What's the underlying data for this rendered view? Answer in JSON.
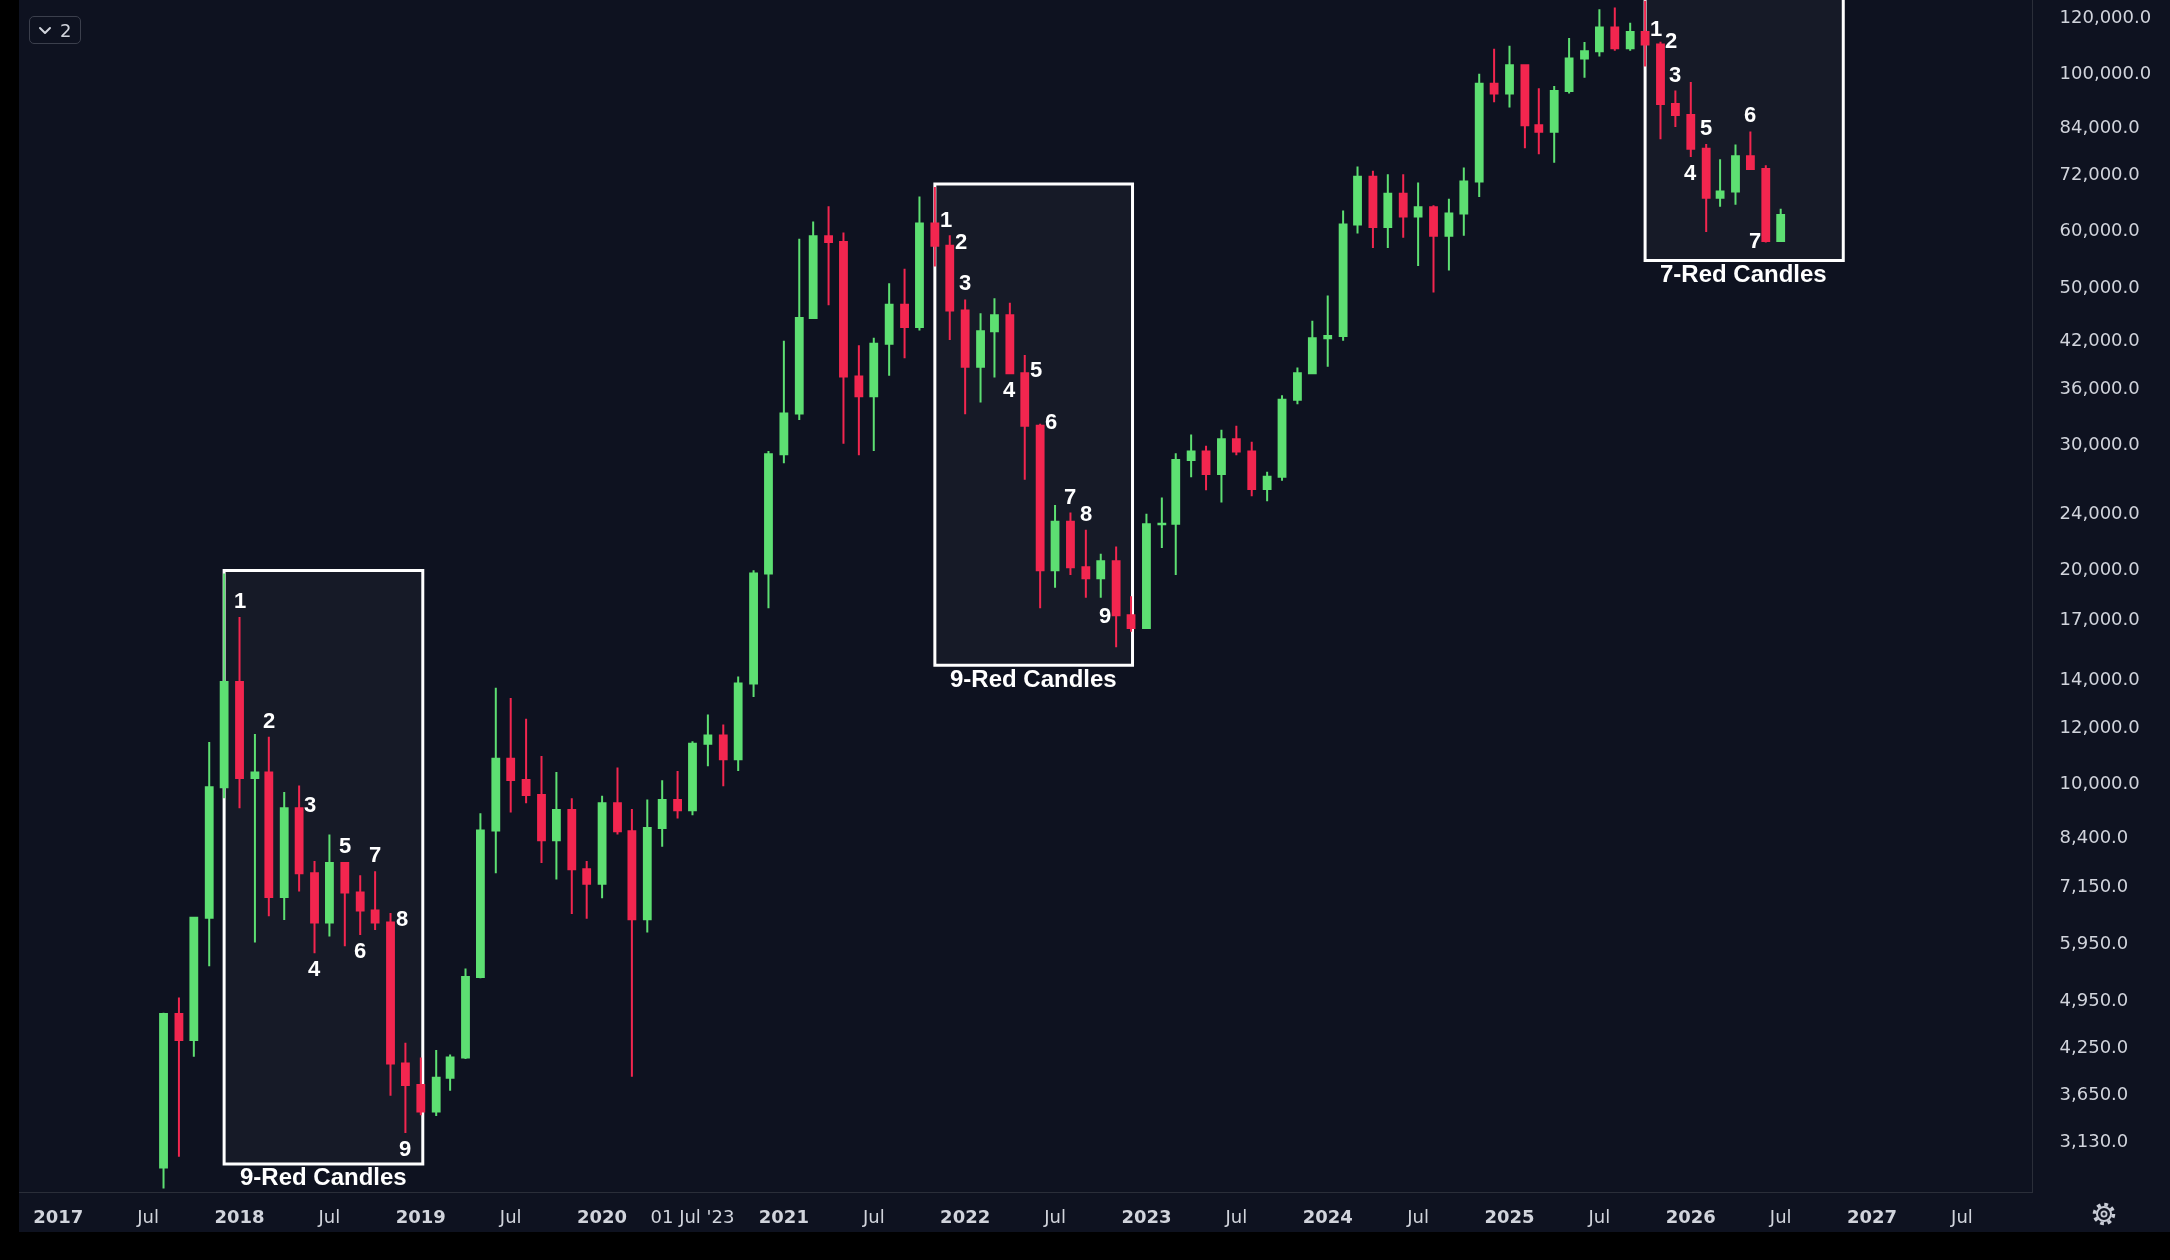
{
  "chart_data": {
    "type": "candlestick",
    "x": [
      "2017-08",
      "2017-09",
      "2017-10",
      "2017-11",
      "2017-12",
      "2018-01",
      "2018-02",
      "2018-03",
      "2018-04",
      "2018-05",
      "2018-06",
      "2018-07",
      "2018-08",
      "2018-09",
      "2018-10",
      "2018-11",
      "2018-12",
      "2019-01",
      "2019-02",
      "2019-03",
      "2019-04",
      "2019-05",
      "2019-06",
      "2019-07",
      "2019-08",
      "2019-09",
      "2019-10",
      "2019-11",
      "2019-12",
      "2020-01",
      "2020-02",
      "2020-03",
      "2020-04",
      "2020-05",
      "2020-06",
      "2020-07",
      "2020-08",
      "2020-09",
      "2020-10",
      "2020-11",
      "2020-12",
      "2021-01",
      "2021-02",
      "2021-03",
      "2021-04",
      "2021-05",
      "2021-06",
      "2021-07",
      "2021-08",
      "2021-09",
      "2021-10",
      "2021-11",
      "2021-12",
      "2022-01",
      "2022-02",
      "2022-03",
      "2022-04",
      "2022-05",
      "2022-06",
      "2022-07",
      "2022-08",
      "2022-09",
      "2022-10",
      "2022-11",
      "2022-12",
      "2023-01",
      "2023-02",
      "2023-03",
      "2023-04",
      "2023-05",
      "2023-06",
      "2023-07",
      "2023-08",
      "2023-09",
      "2023-10",
      "2023-11",
      "2023-12",
      "2024-01",
      "2024-02",
      "2024-03",
      "2024-04",
      "2024-05",
      "2024-06",
      "2024-07",
      "2024-08",
      "2024-09",
      "2024-10",
      "2024-11",
      "2024-12",
      "2025-01",
      "2025-02",
      "2025-03",
      "2025-04",
      "2025-05",
      "2025-06",
      "2025-07",
      "2025-08",
      "2025-09",
      "2025-10",
      "2025-11",
      "2025-12",
      "2026-01",
      "2026-02",
      "2026-03",
      "2026-04",
      "2026-05",
      "2026-06",
      "2026-07"
    ],
    "ohlc": [
      [
        2870,
        4740,
        2680,
        4720
      ],
      [
        4720,
        4980,
        2970,
        4340
      ],
      [
        4340,
        6470,
        4110,
        6450
      ],
      [
        6450,
        11400,
        5510,
        9850
      ],
      [
        9850,
        19700,
        9500,
        13850
      ],
      [
        13850,
        17100,
        9200,
        10150
      ],
      [
        10150,
        11700,
        5950,
        10330
      ],
      [
        10330,
        11600,
        6480,
        6900
      ],
      [
        6900,
        9700,
        6400,
        9200
      ],
      [
        9200,
        9900,
        7020,
        7450
      ],
      [
        7450,
        7750,
        5750,
        6350
      ],
      [
        6350,
        8450,
        6070,
        7700
      ],
      [
        7700,
        7720,
        5880,
        7000
      ],
      [
        7000,
        7400,
        6100,
        6600
      ],
      [
        6600,
        7500,
        6200,
        6350
      ],
      [
        6350,
        6550,
        3620,
        4020
      ],
      [
        4020,
        4300,
        3210,
        3750
      ],
      [
        3750,
        4100,
        3400,
        3440
      ],
      [
        3440,
        4200,
        3390,
        3840
      ],
      [
        3840,
        4140,
        3680,
        4100
      ],
      [
        4100,
        5470,
        4080,
        5320
      ],
      [
        5320,
        9050,
        5300,
        8560
      ],
      [
        8560,
        13600,
        7450,
        10800
      ],
      [
        10800,
        13150,
        9070,
        10080
      ],
      [
        10080,
        12300,
        9350,
        9600
      ],
      [
        9600,
        10900,
        7700,
        8290
      ],
      [
        8290,
        10350,
        7300,
        9150
      ],
      [
        9150,
        9500,
        6530,
        7550
      ],
      [
        7550,
        7750,
        6430,
        7200
      ],
      [
        7200,
        9580,
        6870,
        9350
      ],
      [
        9350,
        10500,
        8450,
        8540
      ],
      [
        8540,
        9180,
        3850,
        6420
      ],
      [
        6420,
        9460,
        6150,
        8630
      ],
      [
        8630,
        10070,
        8120,
        9450
      ],
      [
        9450,
        10380,
        8900,
        9140
      ],
      [
        9140,
        11430,
        8990,
        11340
      ],
      [
        11340,
        12470,
        10540,
        11650
      ],
      [
        11650,
        12070,
        9880,
        10780
      ],
      [
        10780,
        14100,
        10380,
        13790
      ],
      [
        13790,
        19900,
        13200,
        19700
      ],
      [
        19700,
        29300,
        17600,
        28990
      ],
      [
        28990,
        41900,
        28150,
        33100
      ],
      [
        33100,
        58300,
        32400,
        45100
      ],
      [
        45100,
        61700,
        45000,
        58800
      ],
      [
        58800,
        64800,
        47000,
        57700
      ],
      [
        57700,
        59500,
        30000,
        37300
      ],
      [
        37300,
        41300,
        28900,
        35000
      ],
      [
        35000,
        42300,
        29300,
        41500
      ],
      [
        41500,
        50500,
        37400,
        47100
      ],
      [
        47100,
        52900,
        39600,
        43800
      ],
      [
        43800,
        66900,
        43300,
        61300
      ],
      [
        61300,
        69000,
        53300,
        57000
      ],
      [
        57000,
        59000,
        42000,
        46200
      ],
      [
        46200,
        47900,
        33000,
        38500
      ],
      [
        38500,
        45800,
        34300,
        43200
      ],
      [
        43200,
        48100,
        37200,
        45500
      ],
      [
        45500,
        47400,
        37600,
        37700
      ],
      [
        37700,
        40000,
        26700,
        31800
      ],
      [
        31800,
        32000,
        17600,
        19900
      ],
      [
        19900,
        24600,
        18800,
        23300
      ],
      [
        23300,
        24000,
        19600,
        20100
      ],
      [
        20100,
        22700,
        18200,
        19400
      ],
      [
        19400,
        21000,
        18200,
        20500
      ],
      [
        20500,
        21500,
        15500,
        17200
      ],
      [
        17200,
        18300,
        16300,
        16500
      ],
      [
        16500,
        23900,
        16500,
        23100
      ],
      [
        23100,
        25200,
        21400,
        23150
      ],
      [
        23150,
        29100,
        19600,
        28450
      ],
      [
        28450,
        30900,
        26900,
        29250
      ],
      [
        29250,
        29800,
        25800,
        27200
      ],
      [
        27200,
        31400,
        24800,
        30450
      ],
      [
        30450,
        31800,
        28900,
        29250
      ],
      [
        29250,
        30200,
        25300,
        25900
      ],
      [
        25900,
        27400,
        24900,
        26950
      ],
      [
        26950,
        35100,
        26600,
        34600
      ],
      [
        34600,
        38400,
        34100,
        37700
      ],
      [
        37700,
        44700,
        37600,
        42250
      ],
      [
        42250,
        48500,
        38500,
        42550
      ],
      [
        42550,
        63900,
        41900,
        61100
      ],
      [
        61100,
        73700,
        59300,
        71300
      ],
      [
        71300,
        72700,
        56600,
        60600
      ],
      [
        60600,
        71900,
        56600,
        67500
      ],
      [
        67500,
        71900,
        58500,
        62700
      ],
      [
        62700,
        70000,
        53400,
        64600
      ],
      [
        64600,
        65000,
        49000,
        58900
      ],
      [
        58900,
        66400,
        52600,
        63300
      ],
      [
        63300,
        73500,
        58900,
        70200
      ],
      [
        70200,
        99600,
        66800,
        96400
      ],
      [
        96400,
        108000,
        90800,
        93400
      ],
      [
        93400,
        109100,
        89300,
        102400
      ],
      [
        102400,
        102700,
        78200,
        84300
      ],
      [
        84300,
        95000,
        76700,
        82500
      ],
      [
        82500,
        95700,
        74600,
        94200
      ],
      [
        94200,
        111800,
        93400,
        104600
      ],
      [
        104600,
        110400,
        98300,
        107100
      ],
      [
        107100,
        122800,
        105300,
        115700
      ],
      [
        115700,
        123500,
        107300,
        108200
      ],
      [
        108200,
        117500,
        107300,
        114000
      ],
      [
        114000,
        126200,
        102000,
        109500
      ],
      [
        109500,
        110500,
        80500,
        90300
      ],
      [
        90300,
        94300,
        83800,
        87100
      ],
      [
        87100,
        97000,
        76000,
        78100
      ],
      [
        78100,
        79300,
        59600,
        66600
      ],
      [
        66600,
        75500,
        64700,
        68000
      ],
      [
        68000,
        79200,
        65100,
        76200
      ],
      [
        76200,
        82600,
        72900,
        73100
      ],
      [
        73100,
        74000,
        57600,
        57900
      ],
      [
        57900,
        64300,
        57700,
        63000
      ]
    ],
    "colors": [
      "#5ddf72",
      "#f2264f",
      "#5ddf72",
      "#5ddf72",
      "#5ddf72",
      "#f2264f",
      "#5ddf72",
      "#f2264f",
      "#5ddf72",
      "#f2264f",
      "#f2264f",
      "#5ddf72",
      "#f2264f",
      "#f2264f",
      "#f2264f",
      "#f2264f",
      "#f2264f",
      "#f2264f",
      "#5ddf72",
      "#5ddf72",
      "#5ddf72",
      "#5ddf72",
      "#5ddf72",
      "#f2264f",
      "#f2264f",
      "#f2264f",
      "#5ddf72",
      "#f2264f",
      "#f2264f",
      "#5ddf72",
      "#f2264f",
      "#f2264f",
      "#5ddf72",
      "#5ddf72",
      "#f2264f",
      "#5ddf72",
      "#5ddf72",
      "#f2264f",
      "#5ddf72",
      "#5ddf72",
      "#5ddf72",
      "#5ddf72",
      "#5ddf72",
      "#5ddf72",
      "#f2264f",
      "#f2264f",
      "#f2264f",
      "#5ddf72",
      "#5ddf72",
      "#f2264f",
      "#5ddf72",
      "#f2264f",
      "#f2264f",
      "#f2264f",
      "#5ddf72",
      "#5ddf72",
      "#f2264f",
      "#f2264f",
      "#f2264f",
      "#5ddf72",
      "#f2264f",
      "#f2264f",
      "#5ddf72",
      "#f2264f",
      "#f2264f",
      "#5ddf72",
      "#5ddf72",
      "#5ddf72",
      "#5ddf72",
      "#f2264f",
      "#5ddf72",
      "#f2264f",
      "#f2264f",
      "#5ddf72",
      "#5ddf72",
      "#5ddf72",
      "#5ddf72",
      "#5ddf72",
      "#5ddf72",
      "#5ddf72",
      "#f2264f",
      "#5ddf72",
      "#f2264f",
      "#5ddf72",
      "#f2264f",
      "#5ddf72",
      "#5ddf72",
      "#5ddf72",
      "#f2264f",
      "#5ddf72",
      "#f2264f",
      "#f2264f",
      "#5ddf72",
      "#5ddf72",
      "#5ddf72",
      "#5ddf72",
      "#f2264f",
      "#5ddf72",
      "#f2264f",
      "#f2264f",
      "#f2264f",
      "#f2264f",
      "#f2264f",
      "#5ddf72",
      "#5ddf72",
      "#f2264f",
      "#f2264f",
      "#5ddf72"
    ],
    "log": true,
    "xlim": [
      "2016-10-14",
      "2027-11-19"
    ],
    "ylim": [
      2650,
      126500
    ],
    "xticks": [
      {
        "value": "2017-01",
        "label": "2017"
      },
      {
        "value": "2017-07",
        "label": "Jul"
      },
      {
        "value": "2018-01",
        "label": "2018"
      },
      {
        "value": "2018-07",
        "label": "Jul"
      },
      {
        "value": "2019-01",
        "label": "2019"
      },
      {
        "value": "2019-07",
        "label": "Jul"
      },
      {
        "value": "2020-01",
        "label": "2020"
      },
      {
        "value": "2020-07",
        "label": "01 Jul '23"
      },
      {
        "value": "2021-01",
        "label": "2021"
      },
      {
        "value": "2021-07",
        "label": "Jul"
      },
      {
        "value": "2022-01",
        "label": "2022"
      },
      {
        "value": "2022-07",
        "label": "Jul"
      },
      {
        "value": "2023-01",
        "label": "2023"
      },
      {
        "value": "2023-07",
        "label": "Jul"
      },
      {
        "value": "2024-01",
        "label": "2024"
      },
      {
        "value": "2024-07",
        "label": "Jul"
      },
      {
        "value": "2025-01",
        "label": "2025"
      },
      {
        "value": "2025-07",
        "label": "Jul"
      },
      {
        "value": "2026-01",
        "label": "2026"
      },
      {
        "value": "2026-07",
        "label": "Jul"
      },
      {
        "value": "2027-01",
        "label": "2027"
      },
      {
        "value": "2027-07",
        "label": "Jul"
      }
    ],
    "yticks": [
      {
        "value": 3130,
        "label": "3,130.0"
      },
      {
        "value": 3650,
        "label": "3,650.0"
      },
      {
        "value": 4250,
        "label": "4,250.0"
      },
      {
        "value": 4950,
        "label": "4,950.0"
      },
      {
        "value": 5950,
        "label": "5,950.0"
      },
      {
        "value": 7150,
        "label": "7,150.0"
      },
      {
        "value": 8400,
        "label": "8,400.0"
      },
      {
        "value": 10000,
        "label": "10,000.0"
      },
      {
        "value": 12000,
        "label": "12,000.0"
      },
      {
        "value": 14000,
        "label": "14,000.0"
      },
      {
        "value": 17000,
        "label": "17,000.0"
      },
      {
        "value": 20000,
        "label": "20,000.0"
      },
      {
        "value": 24000,
        "label": "24,000.0"
      },
      {
        "value": 30000,
        "label": "30,000.0"
      },
      {
        "value": 36000,
        "label": "36,000.0"
      },
      {
        "value": 42000,
        "label": "42,000.0"
      },
      {
        "value": 50000,
        "label": "50,000.0"
      },
      {
        "value": 60000,
        "label": "60,000.0"
      },
      {
        "value": 72000,
        "label": "72,000.0"
      },
      {
        "value": 84000,
        "label": "84,000.0"
      },
      {
        "value": 100000,
        "label": "100,000.0"
      },
      {
        "value": 120000,
        "label": "120,000.0"
      }
    ],
    "bands": [
      {
        "axis": "x",
        "from": "2017-12-01",
        "to": "2019-01-05",
        "label": "9-Red Candles",
        "color": "#ffffff"
      },
      {
        "axis": "x",
        "from": "2021-11-01",
        "to": "2022-12-04",
        "label": "9-Red Candles",
        "color": "#ffffff"
      },
      {
        "axis": "x",
        "from": "2025-10-01",
        "to": "2026-11-04",
        "label": "7-Red Candles",
        "color": "#ffffff"
      }
    ],
    "annotations": [
      "2",
      {
        "text": "1",
        "x": "2018-01",
        "y": 17100
      },
      {
        "text": "2",
        "x": "2018-03",
        "y": 11600
      },
      {
        "text": "3",
        "x": "2018-05",
        "y": 9200
      },
      {
        "text": "4",
        "x": "2018-06",
        "y": 5750
      },
      {
        "text": "5",
        "x": "2018-08",
        "y": 7720
      },
      {
        "text": "6",
        "x": "2018-09",
        "y": 6100
      },
      {
        "text": "7",
        "x": "2018-10",
        "y": 7500
      },
      {
        "text": "8",
        "x": "2018-11",
        "y": 6350
      },
      {
        "text": "9",
        "x": "2018-12",
        "y": 3210
      },
      {
        "text": "1",
        "x": "2021-11",
        "y": 61300
      },
      {
        "text": "2",
        "x": "2021-12",
        "y": 57000
      },
      {
        "text": "3",
        "x": "2022-01",
        "y": 47900
      },
      {
        "text": "4",
        "x": "2022-04",
        "y": 37600
      },
      {
        "text": "5",
        "x": "2022-05",
        "y": 37700
      },
      {
        "text": "6",
        "x": "2022-06",
        "y": 31800
      },
      {
        "text": "7",
        "x": "2022-08",
        "y": 24000
      },
      {
        "text": "8",
        "x": "2022-09",
        "y": 22700
      },
      {
        "text": "9",
        "x": "2022-11",
        "y": 17200
      },
      {
        "text": "1",
        "x": "2025-10",
        "y": 114000
      },
      {
        "text": "2",
        "x": "2025-11",
        "y": 109500
      },
      {
        "text": "3",
        "x": "2025-12",
        "y": 94300
      },
      {
        "text": "4",
        "x": "2026-01",
        "y": 76000
      },
      {
        "text": "5",
        "x": "2026-02",
        "y": 79300
      },
      {
        "text": "6",
        "x": "2026-05",
        "y": 82600
      },
      {
        "text": "7",
        "x": "2026-06",
        "y": 57900
      }
    ]
  }
}
